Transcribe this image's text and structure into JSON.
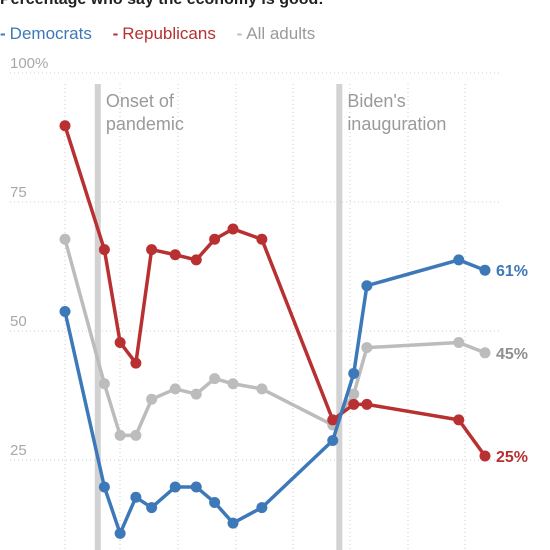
{
  "chart_data": {
    "type": "line",
    "title": "Percentage who say the economy is good:",
    "y_tick_labels": [
      "100%",
      "75",
      "50",
      "25"
    ],
    "ylim": [
      0,
      100
    ],
    "x": [
      0,
      1.5,
      2.1,
      2.7,
      3.3,
      4.2,
      5.0,
      5.7,
      6.4,
      7.5,
      8.9,
      10.2,
      11.0,
      11.5,
      12.1,
      13.5,
      15.0,
      16.0
    ],
    "series": [
      {
        "name": "Democrats",
        "color": "#3d78b9",
        "values": [
          53,
          19,
          10,
          17,
          15,
          19,
          19,
          16,
          12,
          15,
          null,
          28,
          41,
          58,
          null,
          null,
          63,
          61
        ]
      },
      {
        "name": "Republicans",
        "color": "#b83031",
        "values": [
          89,
          65,
          47,
          43,
          65,
          64,
          63,
          67,
          69,
          67,
          null,
          32,
          35,
          35,
          null,
          null,
          32,
          25
        ]
      },
      {
        "name": "All adults",
        "color": "#bcbcbc",
        "values": [
          67,
          39,
          29,
          29,
          36,
          38,
          37,
          40,
          39,
          38,
          null,
          31,
          37,
          46,
          null,
          null,
          47,
          45
        ]
      }
    ],
    "end_labels": [
      {
        "text": "61%",
        "value": 61,
        "color": "#3d78b9",
        "bold": true
      },
      {
        "text": "45%",
        "value": 45,
        "color": "#8f8f8f",
        "bold": false
      },
      {
        "text": "25%",
        "value": 25,
        "color": "#b83031",
        "bold": true
      }
    ],
    "annotations": [
      {
        "lines": [
          "Onset of",
          "pandemic"
        ],
        "x": 1.25
      },
      {
        "lines": [
          "Biden's",
          "inauguration"
        ],
        "x": 10.45
      }
    ],
    "grid": true
  }
}
